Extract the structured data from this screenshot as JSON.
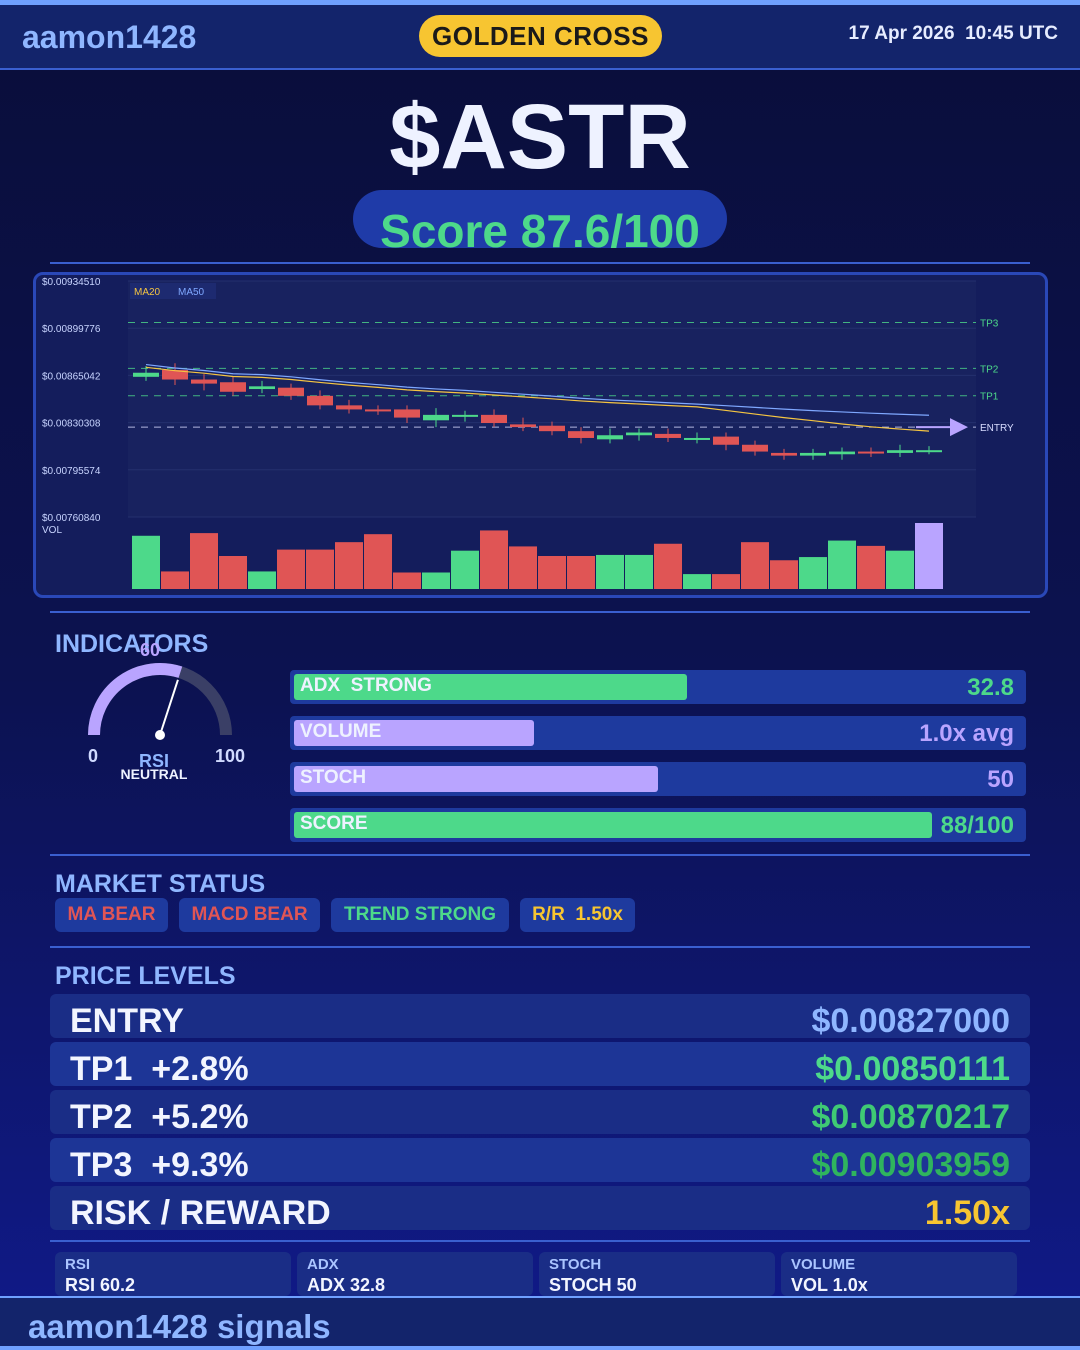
{
  "header": {
    "brand": "aamon1428",
    "badge": "GOLDEN CROSS",
    "datetime": "17 Apr 2026  10:45 UTC"
  },
  "ticker": "$ASTR",
  "score_text": "Score 87.6/100",
  "colors": {
    "bull": "#4dd98a",
    "bear": "#e05555",
    "accent": "#b9a4ff",
    "gold": "#f7c531",
    "ma20": "#f5c542",
    "ma50": "#7fa8ff"
  },
  "chart_data": {
    "type": "candlestick",
    "legend": [
      "MA20",
      "MA50"
    ],
    "y_ticks": [
      "$0.00934510",
      "$0.00899776",
      "$0.00865042",
      "$0.00830308",
      "$0.00795574",
      "$0.00760840"
    ],
    "y_tick_values": [
      0.0093451,
      0.00899776,
      0.00865042,
      0.00830308,
      0.00795574,
      0.0076084
    ],
    "ylim": [
      0.0076084,
      0.0093451
    ],
    "vol_label": "VOL",
    "levels": [
      {
        "name": "TP3",
        "value": 0.00903959
      },
      {
        "name": "TP2",
        "value": 0.00870217
      },
      {
        "name": "TP1",
        "value": 0.00850111
      },
      {
        "name": "ENTRY",
        "value": 0.00827
      }
    ],
    "candles": [
      {
        "o": 0.00864,
        "c": 0.00867,
        "h": 0.00872,
        "l": 0.00861,
        "v": 1.0
      },
      {
        "o": 0.00869,
        "c": 0.00862,
        "h": 0.00874,
        "l": 0.00858,
        "v": 0.33
      },
      {
        "o": 0.00862,
        "c": 0.00859,
        "h": 0.00866,
        "l": 0.00854,
        "v": 1.05
      },
      {
        "o": 0.0086,
        "c": 0.00853,
        "h": 0.00864,
        "l": 0.0085,
        "v": 0.62
      },
      {
        "o": 0.00855,
        "c": 0.00857,
        "h": 0.00861,
        "l": 0.00852,
        "v": 0.33
      },
      {
        "o": 0.00856,
        "c": 0.0085,
        "h": 0.00859,
        "l": 0.00847,
        "v": 0.74
      },
      {
        "o": 0.0085,
        "c": 0.00843,
        "h": 0.00854,
        "l": 0.0084,
        "v": 0.74
      },
      {
        "o": 0.00843,
        "c": 0.0084,
        "h": 0.00847,
        "l": 0.00837,
        "v": 0.88
      },
      {
        "o": 0.0084,
        "c": 0.00839,
        "h": 0.00843,
        "l": 0.00836,
        "v": 1.03
      },
      {
        "o": 0.0084,
        "c": 0.00834,
        "h": 0.00843,
        "l": 0.0083,
        "v": 0.31
      },
      {
        "o": 0.00832,
        "c": 0.00836,
        "h": 0.00841,
        "l": 0.00827,
        "v": 0.31
      },
      {
        "o": 0.00835,
        "c": 0.00836,
        "h": 0.00839,
        "l": 0.00831,
        "v": 0.72
      },
      {
        "o": 0.00836,
        "c": 0.0083,
        "h": 0.0084,
        "l": 0.00827,
        "v": 1.1
      },
      {
        "o": 0.00829,
        "c": 0.00827,
        "h": 0.00834,
        "l": 0.00824,
        "v": 0.8
      },
      {
        "o": 0.00828,
        "c": 0.00824,
        "h": 0.00831,
        "l": 0.00821,
        "v": 0.62
      },
      {
        "o": 0.00824,
        "c": 0.00819,
        "h": 0.00827,
        "l": 0.00815,
        "v": 0.62
      },
      {
        "o": 0.00818,
        "c": 0.00821,
        "h": 0.00826,
        "l": 0.00815,
        "v": 0.64
      },
      {
        "o": 0.00821,
        "c": 0.00823,
        "h": 0.00826,
        "l": 0.00817,
        "v": 0.64
      },
      {
        "o": 0.00822,
        "c": 0.00819,
        "h": 0.00826,
        "l": 0.00816,
        "v": 0.85
      },
      {
        "o": 0.00818,
        "c": 0.00819,
        "h": 0.00823,
        "l": 0.00815,
        "v": 0.28
      },
      {
        "o": 0.0082,
        "c": 0.00814,
        "h": 0.00823,
        "l": 0.0081,
        "v": 0.28
      },
      {
        "o": 0.00814,
        "c": 0.00809,
        "h": 0.00817,
        "l": 0.00806,
        "v": 0.88
      },
      {
        "o": 0.00808,
        "c": 0.00806,
        "h": 0.00811,
        "l": 0.00803,
        "v": 0.54
      },
      {
        "o": 0.00806,
        "c": 0.00808,
        "h": 0.00811,
        "l": 0.00803,
        "v": 0.6
      },
      {
        "o": 0.00807,
        "c": 0.00809,
        "h": 0.00812,
        "l": 0.00803,
        "v": 0.91
      },
      {
        "o": 0.00809,
        "c": 0.00808,
        "h": 0.00812,
        "l": 0.00805,
        "v": 0.81
      },
      {
        "o": 0.00808,
        "c": 0.0081,
        "h": 0.00814,
        "l": 0.00805,
        "v": 0.72
      },
      {
        "o": 0.0081,
        "c": 0.0081,
        "h": 0.00813,
        "l": 0.00807,
        "v": 1.24
      }
    ]
  },
  "indicators": {
    "title": "INDICATORS",
    "gauge": {
      "value": 60,
      "value_text": "60",
      "min_text": "0",
      "max_text": "100",
      "label": "RSI",
      "state": "NEUTRAL"
    },
    "bars": [
      {
        "label": "ADX  STRONG",
        "value": "32.8",
        "fraction": 0.54,
        "color": "#4dd98a",
        "value_color": "#4dd98a"
      },
      {
        "label": "VOLUME",
        "value": "1.0x avg",
        "fraction": 0.33,
        "color": "#b9a4ff",
        "value_color": "#b9a4ff"
      },
      {
        "label": "STOCH",
        "value": "50",
        "fraction": 0.5,
        "color": "#b9a4ff",
        "value_color": "#b9a4ff"
      },
      {
        "label": "SCORE",
        "value": "88/100",
        "fraction": 0.876,
        "color": "#4dd98a",
        "value_color": "#4dd98a"
      }
    ]
  },
  "market": {
    "title": "MARKET STATUS",
    "chips": [
      {
        "label": "MA BEAR",
        "color": "#e05555"
      },
      {
        "label": "MACD BEAR",
        "color": "#e05555"
      },
      {
        "label": "TREND STRONG",
        "color": "#4dd98a"
      },
      {
        "label": "R/R  1.50x",
        "color": "#f7c531"
      }
    ]
  },
  "price_levels": {
    "title": "PRICE LEVELS",
    "rows": [
      {
        "name": "ENTRY",
        "value": "$0.00827000",
        "color": "#8fb6ff"
      },
      {
        "name": "TP1  +2.8%",
        "value": "$0.00850111",
        "color": "#4dd98a"
      },
      {
        "name": "TP2  +5.2%",
        "value": "$0.00870217",
        "color": "#3fca74"
      },
      {
        "name": "TP3  +9.3%",
        "value": "$0.00903959",
        "color": "#2fb45e"
      },
      {
        "name": "RISK / REWARD",
        "value": "1.50x",
        "color": "#f7c531"
      }
    ]
  },
  "summary": [
    {
      "title": "RSI",
      "value": "RSI 60.2"
    },
    {
      "title": "ADX",
      "value": "ADX 32.8"
    },
    {
      "title": "STOCH",
      "value": "STOCH 50"
    },
    {
      "title": "VOLUME",
      "value": "VOL 1.0x"
    }
  ],
  "footer": "aamon1428 signals"
}
